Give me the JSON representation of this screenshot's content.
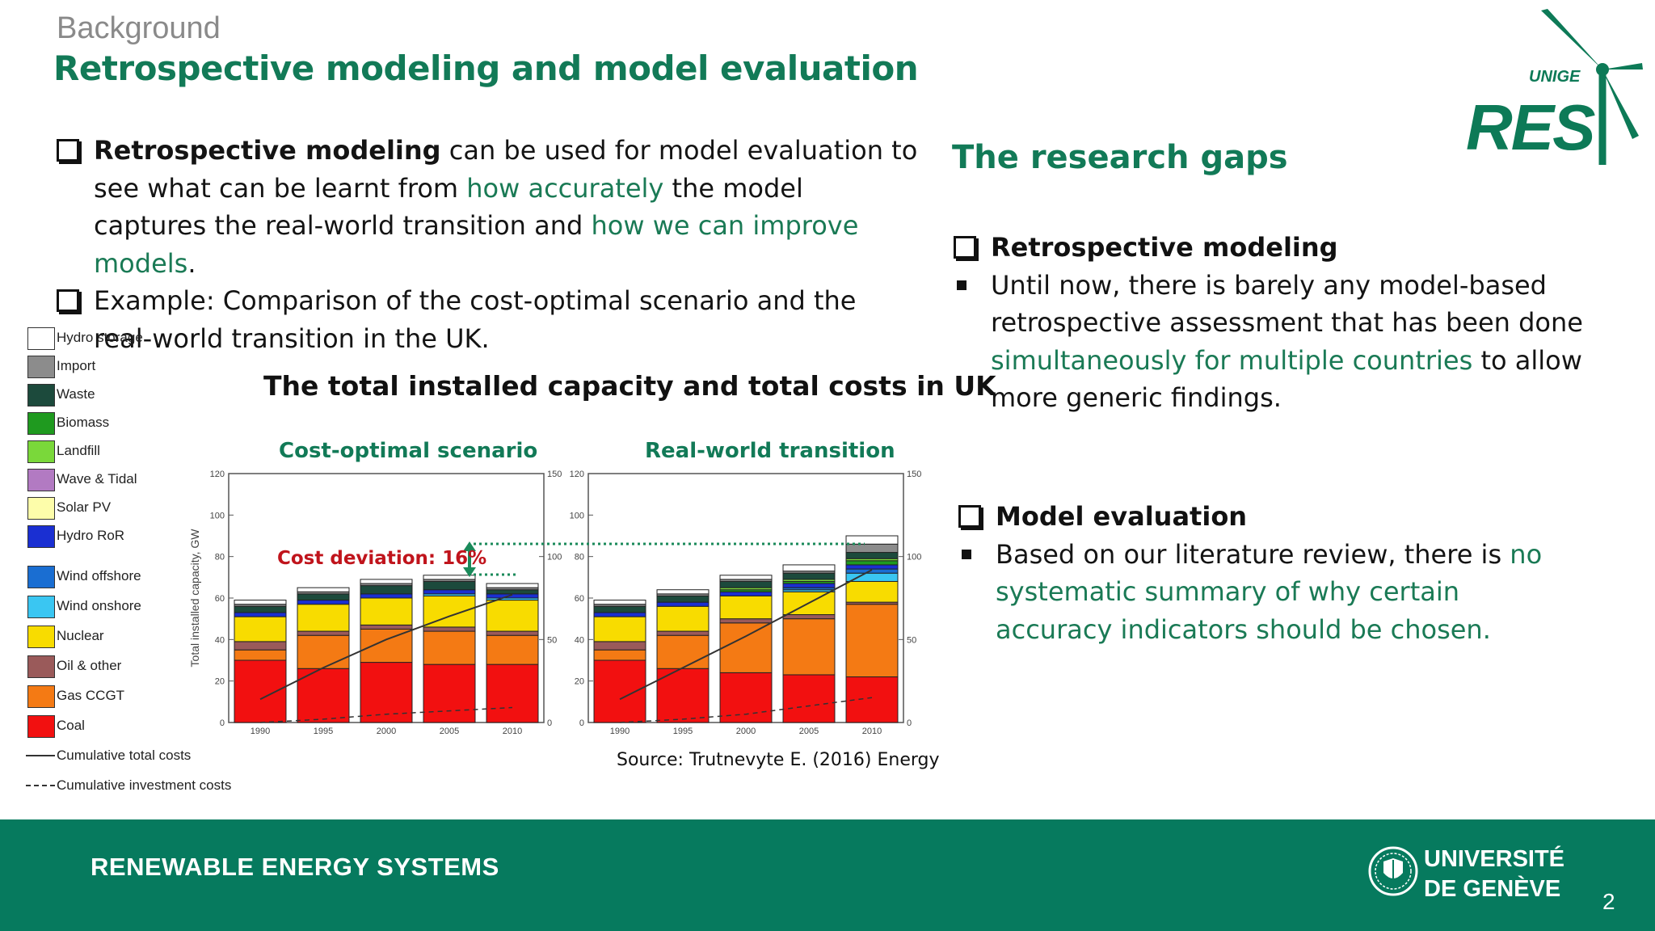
{
  "header": {
    "kicker": "Background",
    "title": "Retrospective modeling and model evaluation"
  },
  "logo": {
    "org": "UNIGE",
    "name": "RES"
  },
  "left_bullets": [
    {
      "bold": "Retrospective modeling",
      "t1": " can be used for model evaluation to see what can be learnt from ",
      "g1": "how accurately",
      "t2": " the model captures the real-world transition and ",
      "g2": "how we can improve models",
      "t3": "."
    },
    {
      "text": "Example: Comparison of the cost-optimal scenario and the real-world transition in the UK."
    }
  ],
  "gaps": {
    "title": "The research gaps",
    "sections": [
      {
        "heading": "Retrospective modeling",
        "t1": "Until now, there is barely any model-based retrospective assessment that has been done ",
        "g1": "simultaneously for multiple countries",
        "t2": " to allow more generic findings."
      },
      {
        "heading": "Model evaluation",
        "t1": "Based on our literature review, there is ",
        "g1": "no systematic summary of why certain accuracy indicators should be chosen."
      }
    ]
  },
  "figure": {
    "title": "The total installed capacity and total costs in UK",
    "source": "Source: Trutnevyte E. (2016) Energy",
    "annotation": "Cost deviation: 16%"
  },
  "legend": [
    {
      "label": "Hydro storage",
      "color": "#ffffff"
    },
    {
      "label": "Import",
      "color": "#8c8c8c"
    },
    {
      "label": "Waste",
      "color": "#1c4a3c"
    },
    {
      "label": "Biomass",
      "color": "#1f9a1f"
    },
    {
      "label": "Landfill",
      "color": "#7ad83a"
    },
    {
      "label": "Wave & Tidal",
      "color": "#b27ac2"
    },
    {
      "label": "Solar PV",
      "color": "#fdfdaa"
    },
    {
      "label": "Hydro RoR",
      "color": "#1a2fd2"
    },
    {
      "label": "Wind offshore",
      "color": "#1a6ed2"
    },
    {
      "label": "Wind onshore",
      "color": "#3ac6f2"
    },
    {
      "label": "Nuclear",
      "color": "#f8dc00"
    },
    {
      "label": "Oil & other",
      "color": "#9a5a5a"
    },
    {
      "label": "Gas CCGT",
      "color": "#f47a14"
    },
    {
      "label": "Coal",
      "color": "#f21010"
    },
    {
      "label": "Cumulative total costs",
      "color": "#333333"
    },
    {
      "label": "Cumulative investment costs",
      "color": "#333333"
    }
  ],
  "chart_data": [
    {
      "type": "bar",
      "title": "Cost-optimal scenario",
      "ylabel": "Total installed capacity, GW",
      "ylim": [
        0,
        120
      ],
      "ylim_right": [
        0,
        150
      ],
      "yticks": [
        0,
        20,
        40,
        60,
        80,
        100,
        120
      ],
      "yticks_right": [
        0,
        50,
        100,
        150
      ],
      "categories": [
        "1990",
        "1995",
        "2000",
        "2005",
        "2010"
      ],
      "series": [
        {
          "name": "Coal",
          "values": [
            30,
            26,
            29,
            28,
            28
          ]
        },
        {
          "name": "Gas CCGT",
          "values": [
            5,
            16,
            16,
            16,
            14
          ]
        },
        {
          "name": "Oil & other",
          "values": [
            4,
            2,
            2,
            2,
            2
          ]
        },
        {
          "name": "Nuclear",
          "values": [
            12,
            13,
            13,
            15,
            15
          ]
        },
        {
          "name": "Wind onshore",
          "values": [
            0,
            0,
            0,
            1,
            1
          ]
        },
        {
          "name": "Hydro RoR",
          "values": [
            2,
            2,
            2,
            2,
            2
          ]
        },
        {
          "name": "Waste",
          "values": [
            3,
            3,
            4,
            4,
            2
          ]
        },
        {
          "name": "Import",
          "values": [
            1,
            1,
            1,
            1,
            1
          ]
        },
        {
          "name": "Hydro storage",
          "values": [
            2,
            2,
            2,
            2,
            2
          ]
        }
      ],
      "cumulative_total_costs": [
        14,
        33,
        50,
        64,
        77
      ],
      "cumulative_investment_costs": [
        0,
        2,
        5,
        7,
        9
      ]
    },
    {
      "type": "bar",
      "title": "Real-world transition",
      "ylim": [
        0,
        120
      ],
      "ylim_right": [
        0,
        150
      ],
      "yticks": [
        0,
        20,
        40,
        60,
        80,
        100,
        120
      ],
      "yticks_right": [
        0,
        50,
        100,
        150
      ],
      "categories": [
        "1990",
        "1995",
        "2000",
        "2005",
        "2010"
      ],
      "series": [
        {
          "name": "Coal",
          "values": [
            30,
            26,
            24,
            23,
            22
          ]
        },
        {
          "name": "Gas CCGT",
          "values": [
            5,
            16,
            24,
            27,
            35
          ]
        },
        {
          "name": "Oil & other",
          "values": [
            4,
            2,
            2,
            2,
            1
          ]
        },
        {
          "name": "Nuclear",
          "values": [
            12,
            12,
            11,
            11,
            10
          ]
        },
        {
          "name": "Wind onshore",
          "values": [
            0,
            0,
            0,
            1,
            4
          ]
        },
        {
          "name": "Wind offshore",
          "values": [
            0,
            0,
            0,
            1,
            2
          ]
        },
        {
          "name": "Hydro RoR",
          "values": [
            2,
            2,
            2,
            2,
            2
          ]
        },
        {
          "name": "Biomass",
          "values": [
            0,
            0,
            1,
            1,
            2
          ]
        },
        {
          "name": "Landfill",
          "values": [
            0,
            0,
            1,
            1,
            1
          ]
        },
        {
          "name": "Waste",
          "values": [
            3,
            3,
            3,
            3,
            3
          ]
        },
        {
          "name": "Import",
          "values": [
            1,
            1,
            1,
            1,
            4
          ]
        },
        {
          "name": "Hydro storage",
          "values": [
            2,
            2,
            2,
            3,
            4
          ]
        }
      ],
      "cumulative_total_costs": [
        14,
        33,
        52,
        72,
        92
      ],
      "cumulative_investment_costs": [
        0,
        2,
        5,
        10,
        15
      ]
    }
  ],
  "footer": {
    "left": "RENEWABLE ENERGY SYSTEMS",
    "uni_line1": "UNIVERSITÉ",
    "uni_line2": "DE GENÈVE",
    "page": "2"
  }
}
